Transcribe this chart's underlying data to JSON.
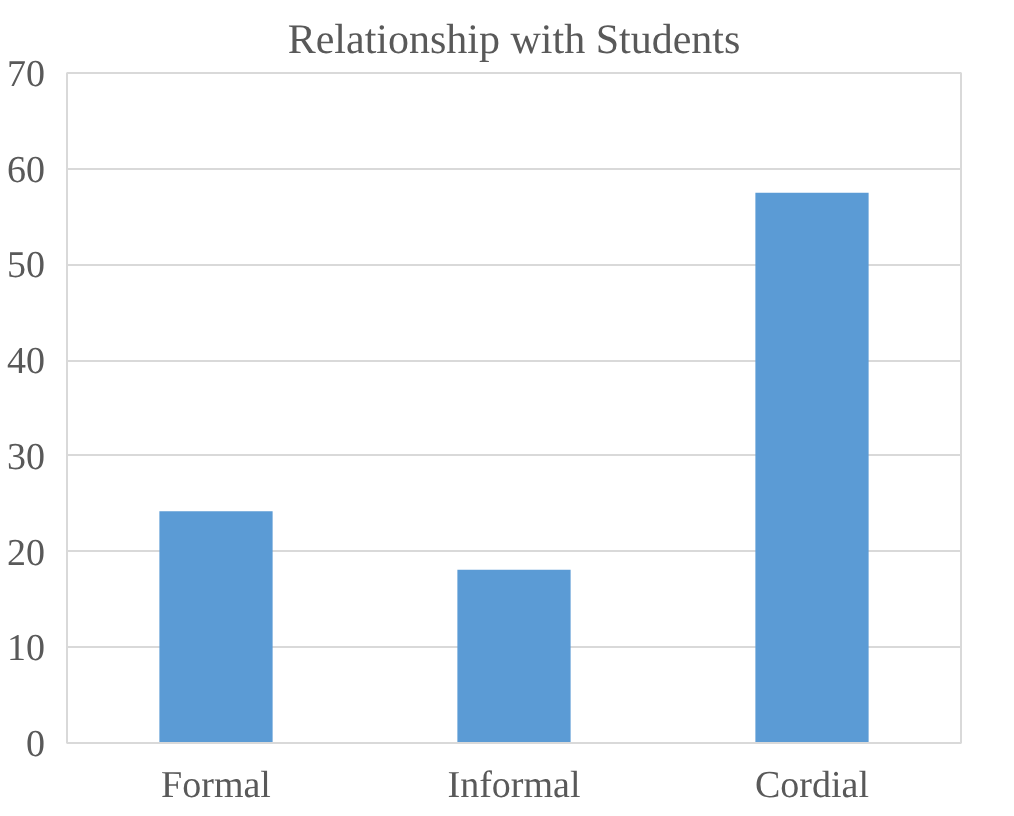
{
  "chart_data": {
    "type": "bar",
    "title": "Relationship with Students",
    "categories": [
      "Formal",
      "Informal",
      "Cordial"
    ],
    "values": [
      24.2,
      18.1,
      57.5
    ],
    "color": "#5b9bd5",
    "ylim": [
      0,
      70
    ],
    "yticks": [
      0,
      10,
      20,
      30,
      40,
      50,
      60,
      70
    ],
    "grid": "y"
  }
}
